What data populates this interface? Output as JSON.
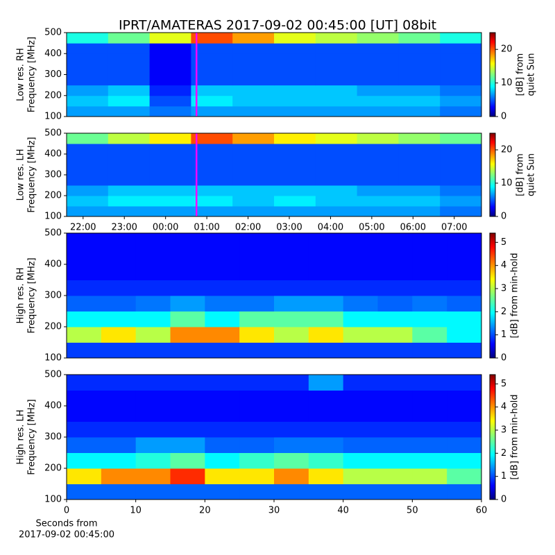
{
  "title": "IPRT/AMATERAS 2017-09-02 00:45:00 [UT]   08bit",
  "chart_data": [
    {
      "type": "heatmap",
      "cmap": "jet",
      "ylabel": [
        "Low res. RH",
        "Frequency [MHz]"
      ],
      "xlim": [
        21.6,
        31.66
      ],
      "ylim": [
        100,
        500
      ],
      "yticks": [
        100,
        200,
        300,
        400,
        500
      ],
      "vline": 24.75,
      "vline_color": "#ff00ff",
      "values": [
        [
          7,
          7,
          6,
          7,
          7,
          7,
          7,
          7,
          7,
          6
        ],
        [
          8,
          9,
          5,
          9,
          8,
          8,
          8,
          8,
          8,
          7
        ],
        [
          7,
          8,
          4,
          8,
          8,
          8,
          8,
          7,
          7,
          6
        ],
        [
          5,
          5,
          3,
          5,
          5,
          5,
          5,
          5,
          5,
          5
        ],
        [
          5,
          5,
          3,
          5,
          5,
          5,
          5,
          5,
          5,
          5
        ],
        [
          5,
          5,
          3,
          5,
          5,
          5,
          5,
          5,
          5,
          5
        ],
        [
          5,
          5,
          3,
          5,
          5,
          5,
          5,
          5,
          5,
          5
        ],
        [
          10,
          12,
          15,
          20,
          18,
          15,
          14,
          13,
          12,
          10
        ]
      ],
      "colorbar": {
        "label": [
          "[dB] from",
          "quiet Sun"
        ],
        "lim": [
          0,
          25
        ],
        "ticks": [
          0,
          10,
          20
        ]
      }
    },
    {
      "type": "heatmap",
      "cmap": "jet",
      "ylabel": [
        "Low res. LH",
        "Frequency [MHz]"
      ],
      "xlim": [
        21.6,
        31.66
      ],
      "ylim": [
        100,
        500
      ],
      "yticks": [
        100,
        200,
        300,
        400,
        500
      ],
      "xticks": [
        {
          "value": 22,
          "label": "22:00"
        },
        {
          "value": 23,
          "label": "23:00"
        },
        {
          "value": 24,
          "label": "00:00"
        },
        {
          "value": 25,
          "label": "01:00"
        },
        {
          "value": 26,
          "label": "02:00"
        },
        {
          "value": 27,
          "label": "03:00"
        },
        {
          "value": 28,
          "label": "04:00"
        },
        {
          "value": 29,
          "label": "05:00"
        },
        {
          "value": 30,
          "label": "06:00"
        },
        {
          "value": 31,
          "label": "07:00"
        }
      ],
      "vline": 24.75,
      "vline_color": "#ff00ff",
      "values": [
        [
          7,
          7,
          7,
          7,
          7,
          7,
          7,
          7,
          7,
          6
        ],
        [
          8,
          9,
          9,
          9,
          8,
          9,
          8,
          8,
          8,
          7
        ],
        [
          7,
          8,
          8,
          8,
          8,
          8,
          8,
          7,
          7,
          6
        ],
        [
          5,
          5,
          5,
          5,
          5,
          5,
          5,
          5,
          5,
          5
        ],
        [
          5,
          5,
          5,
          5,
          5,
          5,
          5,
          5,
          5,
          5
        ],
        [
          5,
          5,
          5,
          5,
          5,
          5,
          5,
          5,
          5,
          5
        ],
        [
          5,
          5,
          5,
          5,
          5,
          5,
          5,
          5,
          5,
          5
        ],
        [
          12,
          14,
          16,
          20,
          18,
          16,
          15,
          14,
          13,
          12
        ]
      ],
      "colorbar": {
        "label": [
          "[dB] from",
          "quiet Sun"
        ],
        "lim": [
          0,
          25
        ],
        "ticks": [
          0,
          10,
          20
        ]
      }
    },
    {
      "type": "heatmap",
      "cmap": "jet",
      "ylabel": [
        "High res. RH",
        "Frequency [MHz]"
      ],
      "xlim": [
        0,
        60
      ],
      "ylim": [
        100,
        500
      ],
      "yticks": [
        100,
        200,
        300,
        400,
        500
      ],
      "values": [
        [
          1,
          1,
          1,
          1,
          1,
          1,
          1,
          1,
          1,
          1,
          1,
          1
        ],
        [
          3,
          3.5,
          3,
          4,
          4,
          3.5,
          3,
          3.5,
          3,
          3,
          2.5,
          2
        ],
        [
          2,
          2,
          2,
          2.5,
          2,
          2.5,
          2.5,
          2.5,
          2,
          2,
          2,
          2
        ],
        [
          1.2,
          1.2,
          1.3,
          1.5,
          1.3,
          1.3,
          1.5,
          1.5,
          1.3,
          1.2,
          1.3,
          1.2
        ],
        [
          0.9,
          0.9,
          0.9,
          0.9,
          0.9,
          0.9,
          0.9,
          0.9,
          0.9,
          0.9,
          0.9,
          0.9
        ],
        [
          0.7,
          0.7,
          0.7,
          0.7,
          0.7,
          0.7,
          0.7,
          0.7,
          0.7,
          0.7,
          0.7,
          0.7
        ],
        [
          0.7,
          0.7,
          0.7,
          0.7,
          0.7,
          0.7,
          0.7,
          0.7,
          0.7,
          0.7,
          0.7,
          0.7
        ],
        [
          0.7,
          0.7,
          0.7,
          0.7,
          0.7,
          0.7,
          0.7,
          0.7,
          0.7,
          0.7,
          0.7,
          0.7
        ]
      ],
      "colorbar": {
        "label": [
          "[dB] from min-hold"
        ],
        "lim": [
          0,
          5.4
        ],
        "ticks": [
          0,
          1,
          2,
          3,
          4,
          5
        ]
      }
    },
    {
      "type": "heatmap",
      "cmap": "jet",
      "ylabel": [
        "High res. LH",
        "Frequency [MHz]"
      ],
      "xlim": [
        0,
        60
      ],
      "ylim": [
        100,
        500
      ],
      "yticks": [
        100,
        200,
        300,
        400,
        500
      ],
      "xticks": [
        0,
        10,
        20,
        30,
        40,
        50,
        60
      ],
      "xlabel": [
        "Seconds from",
        "2017-09-02 00:45:00"
      ],
      "values": [
        [
          1.2,
          1.2,
          1.2,
          1.2,
          1.2,
          1.2,
          1.2,
          1.2,
          1.2,
          1.2,
          1.2,
          1.2
        ],
        [
          3.5,
          4,
          4,
          4.5,
          3.5,
          3.5,
          4,
          3.5,
          3,
          3,
          3,
          2.5
        ],
        [
          2,
          2,
          2.2,
          2.5,
          2,
          2.3,
          2.5,
          2.3,
          2,
          2,
          2,
          2
        ],
        [
          1.2,
          1.2,
          1.5,
          1.5,
          1.2,
          1.2,
          1.3,
          1.3,
          1.2,
          1.2,
          1.2,
          1.2
        ],
        [
          0.9,
          0.9,
          0.9,
          0.9,
          0.9,
          0.9,
          0.9,
          0.9,
          0.9,
          0.9,
          0.9,
          0.9
        ],
        [
          0.7,
          0.7,
          0.7,
          0.7,
          0.7,
          0.7,
          0.7,
          0.7,
          0.7,
          0.7,
          0.7,
          0.7
        ],
        [
          0.7,
          0.7,
          0.7,
          0.7,
          0.7,
          0.7,
          0.7,
          0.7,
          0.7,
          0.7,
          0.7,
          0.7
        ],
        [
          0.9,
          0.9,
          0.9,
          0.9,
          0.9,
          0.9,
          0.9,
          1.5,
          0.9,
          0.9,
          0.9,
          0.9
        ]
      ],
      "colorbar": {
        "label": [
          "[dB] from min-hold"
        ],
        "lim": [
          0,
          5.4
        ],
        "ticks": [
          0,
          1,
          2,
          3,
          4,
          5
        ]
      }
    }
  ]
}
